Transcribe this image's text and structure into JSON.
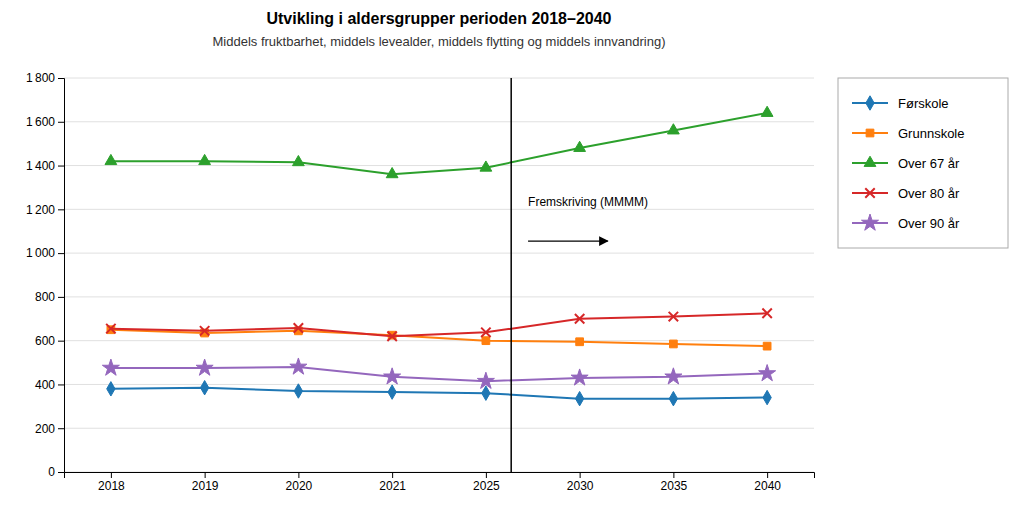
{
  "chart_data": {
    "type": "line",
    "title": "Utvikling i aldersgrupper perioden 2018–2040",
    "subtitle": "Middels fruktbarhet, middels levealder, middels flytting og middels innvandring)",
    "annotations": [
      "Fremskriving (MMMM)"
    ],
    "categories": [
      "2018",
      "2019",
      "2020",
      "2021",
      "2025",
      "2030",
      "2035",
      "2040"
    ],
    "ylim": [
      0,
      1800
    ],
    "yticks": [
      0,
      200,
      400,
      600,
      800,
      {
        "value": 1000,
        "label": "1 000"
      },
      {
        "value": 1200,
        "label": "1 200"
      },
      {
        "value": 1400,
        "label": "1 400"
      },
      {
        "value": 1600,
        "label": "1 600"
      },
      {
        "value": 1800,
        "label": "1 800"
      }
    ],
    "grid": true,
    "legend": "right",
    "series": [
      {
        "name": "Førskole",
        "marker": "diamond",
        "values": [
          380,
          385,
          370,
          365,
          360,
          335,
          335,
          340
        ]
      },
      {
        "name": "Grunnskole",
        "marker": "square",
        "values": [
          650,
          635,
          645,
          625,
          600,
          595,
          585,
          575
        ]
      },
      {
        "name": "Over 67 år",
        "marker": "triangle",
        "values": [
          1420,
          1420,
          1415,
          1360,
          1390,
          1480,
          1560,
          1640
        ]
      },
      {
        "name": "Over 80 år",
        "marker": "x",
        "values": [
          655,
          645,
          658,
          620,
          638,
          700,
          710,
          725
        ]
      },
      {
        "name": "Over 90 år",
        "marker": "star",
        "values": [
          475,
          475,
          480,
          435,
          415,
          430,
          435,
          450
        ]
      }
    ]
  }
}
